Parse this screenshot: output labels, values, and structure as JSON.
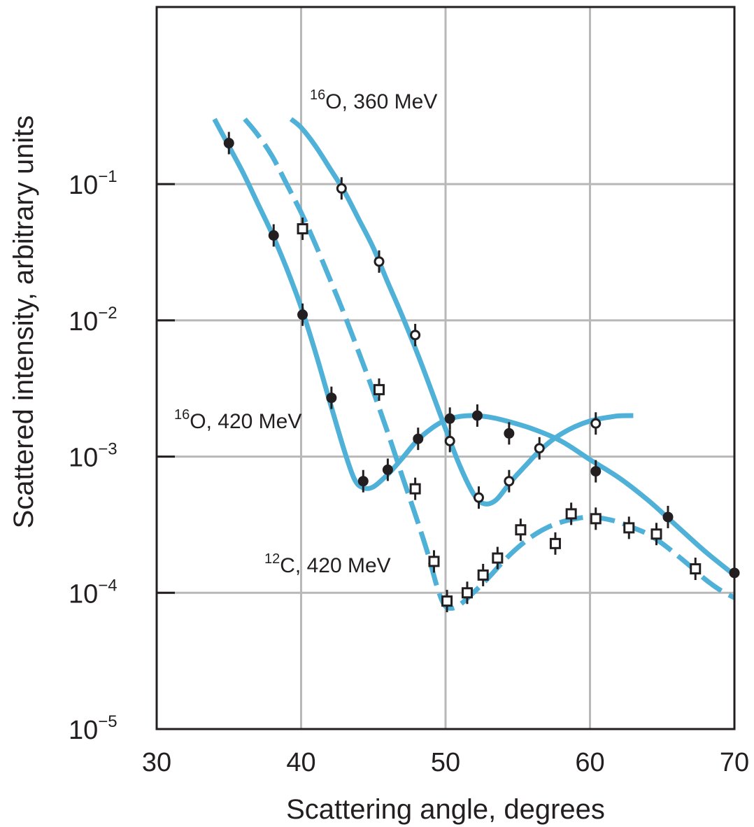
{
  "chart_data": {
    "type": "line",
    "xlabel": "Scattering angle, degrees",
    "ylabel": "Scattered intensity, arbitrary units",
    "xlim": [
      30,
      70
    ],
    "ylim": [
      1e-05,
      1
    ],
    "y_scale": "log",
    "grid": true,
    "x_ticks": [
      {
        "value": 30,
        "label": "30"
      },
      {
        "value": 40,
        "label": "40"
      },
      {
        "value": 50,
        "label": "50"
      },
      {
        "value": 60,
        "label": "60"
      },
      {
        "value": 70,
        "label": "70"
      }
    ],
    "y_ticks": [
      {
        "value": 1e-05,
        "base": "10",
        "exp": "−5"
      },
      {
        "value": 0.0001,
        "base": "10",
        "exp": "−4"
      },
      {
        "value": 0.001,
        "base": "10",
        "exp": "−3"
      },
      {
        "value": 0.01,
        "base": "10",
        "exp": "−2"
      },
      {
        "value": 0.1,
        "base": "10",
        "exp": "−1"
      }
    ],
    "colors": {
      "curve": "#4fb0d8",
      "marker": "#231f20",
      "grid": "#b8b8b8",
      "frame": "#231f20"
    },
    "series": [
      {
        "label_mass": "16",
        "label_text": "O, 420 MeV",
        "marker": "filled-circle",
        "curve_style": "solid",
        "points": [
          [
            35.0,
            0.2
          ],
          [
            38.1,
            0.042
          ],
          [
            40.1,
            0.011
          ],
          [
            42.1,
            0.0027
          ],
          [
            44.3,
            0.00066
          ],
          [
            46.0,
            0.0008
          ],
          [
            48.1,
            0.00135
          ],
          [
            50.3,
            0.0019
          ],
          [
            52.2,
            0.002
          ],
          [
            54.4,
            0.00148
          ],
          [
            60.4,
            0.00078
          ],
          [
            65.4,
            0.00036
          ],
          [
            70.0,
            0.00014
          ]
        ],
        "curve": [
          [
            34.0,
            0.3
          ],
          [
            35.0,
            0.19
          ],
          [
            36.0,
            0.12
          ],
          [
            37.0,
            0.072
          ],
          [
            38.0,
            0.043
          ],
          [
            39.0,
            0.024
          ],
          [
            40.0,
            0.0125
          ],
          [
            41.0,
            0.0058
          ],
          [
            42.0,
            0.0025
          ],
          [
            43.0,
            0.0011
          ],
          [
            43.7,
            0.00068
          ],
          [
            44.3,
            0.00059
          ],
          [
            45.0,
            0.0006
          ],
          [
            46.0,
            0.00074
          ],
          [
            47.0,
            0.00097
          ],
          [
            48.0,
            0.0013
          ],
          [
            49.0,
            0.0016
          ],
          [
            50.0,
            0.00185
          ],
          [
            51.0,
            0.00197
          ],
          [
            52.0,
            0.002
          ],
          [
            53.0,
            0.00195
          ],
          [
            54.0,
            0.00185
          ],
          [
            56.0,
            0.0016
          ],
          [
            58.0,
            0.0013
          ],
          [
            60.0,
            0.00095
          ],
          [
            62.0,
            0.0007
          ],
          [
            64.0,
            0.00048
          ],
          [
            66.0,
            0.00031
          ],
          [
            68.0,
            0.0002
          ],
          [
            70.0,
            0.000135
          ]
        ]
      },
      {
        "label_mass": "16",
        "label_text": "O, 360 MeV",
        "marker": "open-circle",
        "curve_style": "solid",
        "points": [
          [
            42.8,
            0.093
          ],
          [
            45.4,
            0.027
          ],
          [
            47.9,
            0.0078
          ],
          [
            50.3,
            0.0013
          ],
          [
            52.3,
            0.0005
          ],
          [
            54.4,
            0.00066
          ],
          [
            56.5,
            0.00115
          ],
          [
            60.4,
            0.00175
          ]
        ],
        "curve": [
          [
            39.3,
            0.3
          ],
          [
            40.0,
            0.26
          ],
          [
            41.0,
            0.19
          ],
          [
            42.0,
            0.13
          ],
          [
            43.0,
            0.088
          ],
          [
            44.0,
            0.055
          ],
          [
            45.0,
            0.034
          ],
          [
            46.0,
            0.019
          ],
          [
            47.0,
            0.0108
          ],
          [
            48.0,
            0.0059
          ],
          [
            49.0,
            0.0031
          ],
          [
            50.0,
            0.0016
          ],
          [
            51.0,
            0.00085
          ],
          [
            52.0,
            0.00052
          ],
          [
            52.7,
            0.00045
          ],
          [
            53.5,
            0.00048
          ],
          [
            54.5,
            0.00065
          ],
          [
            55.5,
            0.00085
          ],
          [
            56.5,
            0.0011
          ],
          [
            57.5,
            0.00135
          ],
          [
            58.5,
            0.00157
          ],
          [
            59.5,
            0.00175
          ],
          [
            60.5,
            0.00188
          ],
          [
            61.5,
            0.00196
          ],
          [
            62.0,
            0.00199
          ],
          [
            63.0,
            0.002
          ]
        ]
      },
      {
        "label_mass": "12",
        "label_text": "C, 420 MeV",
        "marker": "open-square",
        "curve_style": "dashed",
        "points": [
          [
            40.1,
            0.047
          ],
          [
            45.4,
            0.0031
          ],
          [
            47.9,
            0.00058
          ],
          [
            49.2,
            0.00017
          ],
          [
            50.1,
            8.7e-05
          ],
          [
            51.5,
            0.0001
          ],
          [
            52.6,
            0.000135
          ],
          [
            53.6,
            0.00018
          ],
          [
            55.2,
            0.00029
          ],
          [
            57.6,
            0.00023
          ],
          [
            58.7,
            0.00038
          ],
          [
            60.4,
            0.00035
          ],
          [
            62.7,
            0.0003
          ],
          [
            64.6,
            0.00027
          ],
          [
            67.3,
            0.00015
          ]
        ],
        "curve": [
          [
            36.1,
            0.3
          ],
          [
            37.0,
            0.23
          ],
          [
            38.0,
            0.16
          ],
          [
            39.0,
            0.1
          ],
          [
            40.0,
            0.062
          ],
          [
            41.0,
            0.036
          ],
          [
            42.0,
            0.02
          ],
          [
            43.0,
            0.011
          ],
          [
            44.0,
            0.0058
          ],
          [
            45.0,
            0.003
          ],
          [
            46.0,
            0.0015
          ],
          [
            47.0,
            0.00072
          ],
          [
            48.0,
            0.00035
          ],
          [
            48.8,
            0.00019
          ],
          [
            49.4,
            0.000112
          ],
          [
            49.9,
            8.2e-05
          ],
          [
            50.4,
            7.7e-05
          ],
          [
            51.0,
            8.2e-05
          ],
          [
            52.0,
            0.000102
          ],
          [
            53.0,
            0.00013
          ],
          [
            54.0,
            0.00017
          ],
          [
            55.0,
            0.000215
          ],
          [
            56.0,
            0.00026
          ],
          [
            57.0,
            0.0003
          ],
          [
            58.0,
            0.00033
          ],
          [
            59.0,
            0.00035
          ],
          [
            60.0,
            0.00036
          ],
          [
            61.0,
            0.00035
          ],
          [
            62.0,
            0.00033
          ],
          [
            63.0,
            0.0003
          ],
          [
            64.0,
            0.00027
          ],
          [
            65.0,
            0.00023
          ],
          [
            66.0,
            0.00019
          ],
          [
            67.0,
            0.000155
          ],
          [
            68.0,
            0.000125
          ],
          [
            69.0,
            0.000105
          ],
          [
            70.0,
            9.2e-05
          ]
        ]
      }
    ]
  }
}
